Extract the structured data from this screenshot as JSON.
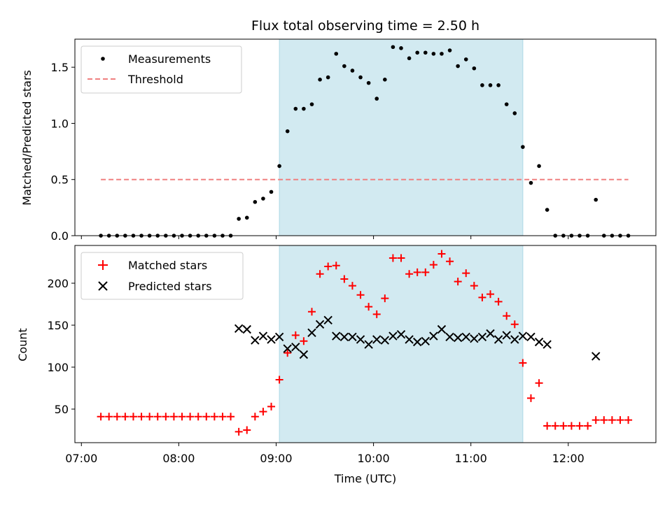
{
  "chart_data": [
    {
      "type": "scatter",
      "title": "Flux total observing time = 2.50 h",
      "ylabel": "Matched/Predicted stars",
      "xlabel": "",
      "xlim": [
        "06:56",
        "12:54"
      ],
      "ylim": [
        0,
        1.75
      ],
      "yticks": [
        "0.0",
        "0.5",
        "1.0",
        "1.5"
      ],
      "legend_position": "top-left",
      "grid": false,
      "shaded_span": {
        "start": "09:02",
        "end": "11:32",
        "color": "#add8e6"
      },
      "series": [
        {
          "name": "Measurements",
          "marker": "dot",
          "color": "#000000",
          "x": [
            "07:12",
            "07:17",
            "07:22",
            "07:27",
            "07:32",
            "07:37",
            "07:42",
            "07:47",
            "07:52",
            "07:57",
            "08:02",
            "08:07",
            "08:12",
            "08:17",
            "08:22",
            "08:27",
            "08:32",
            "08:37",
            "08:42",
            "08:47",
            "08:52",
            "08:57",
            "09:02",
            "09:07",
            "09:12",
            "09:17",
            "09:22",
            "09:27",
            "09:32",
            "09:37",
            "09:42",
            "09:47",
            "09:52",
            "09:57",
            "10:02",
            "10:07",
            "10:12",
            "10:17",
            "10:22",
            "10:27",
            "10:32",
            "10:37",
            "10:42",
            "10:47",
            "10:52",
            "10:57",
            "11:02",
            "11:07",
            "11:12",
            "11:17",
            "11:22",
            "11:27",
            "11:32",
            "11:37",
            "11:42",
            "11:47",
            "11:52",
            "11:57",
            "12:02",
            "12:07",
            "12:12",
            "12:17",
            "12:22",
            "12:27",
            "12:32",
            "12:37"
          ],
          "values": [
            0,
            0,
            0,
            0,
            0,
            0,
            0,
            0,
            0,
            0,
            0,
            0,
            0,
            0,
            0,
            0,
            0,
            0.15,
            0.16,
            0.3,
            0.33,
            0.39,
            0.62,
            0.93,
            1.13,
            1.13,
            1.17,
            1.39,
            1.41,
            1.62,
            1.51,
            1.47,
            1.41,
            1.36,
            1.22,
            1.39,
            1.68,
            1.67,
            1.58,
            1.63,
            1.63,
            1.62,
            1.62,
            1.65,
            1.51,
            1.57,
            1.49,
            1.34,
            1.34,
            1.34,
            1.17,
            1.09,
            0.79,
            0.47,
            0.62,
            0.23,
            0,
            0,
            0,
            0,
            0,
            0.32,
            0,
            0,
            0,
            0
          ]
        },
        {
          "name": "Threshold",
          "marker": "dashed-line",
          "color": "#f08080",
          "x": [
            "07:12",
            "12:37"
          ],
          "values": [
            0.5,
            0.5
          ]
        }
      ]
    },
    {
      "type": "scatter",
      "title": "",
      "ylabel": "Count",
      "xlabel": "Time (UTC)",
      "xlim": [
        "06:56",
        "12:54"
      ],
      "ylim": [
        10,
        245
      ],
      "yticks": [
        "50",
        "100",
        "150",
        "200"
      ],
      "xticks": [
        "07:00",
        "08:00",
        "09:00",
        "10:00",
        "11:00",
        "12:00"
      ],
      "legend_position": "top-left",
      "grid": false,
      "shaded_span": {
        "start": "09:02",
        "end": "11:32",
        "color": "#add8e6"
      },
      "series": [
        {
          "name": "Matched stars",
          "marker": "plus",
          "color": "#ff0000",
          "x": [
            "07:12",
            "07:17",
            "07:22",
            "07:27",
            "07:32",
            "07:37",
            "07:42",
            "07:47",
            "07:52",
            "07:57",
            "08:02",
            "08:07",
            "08:12",
            "08:17",
            "08:22",
            "08:27",
            "08:32",
            "08:37",
            "08:42",
            "08:47",
            "08:52",
            "08:57",
            "09:02",
            "09:07",
            "09:12",
            "09:17",
            "09:22",
            "09:27",
            "09:32",
            "09:37",
            "09:42",
            "09:47",
            "09:52",
            "09:57",
            "10:02",
            "10:07",
            "10:12",
            "10:17",
            "10:22",
            "10:27",
            "10:32",
            "10:37",
            "10:42",
            "10:47",
            "10:52",
            "10:57",
            "11:02",
            "11:07",
            "11:12",
            "11:17",
            "11:22",
            "11:27",
            "11:32",
            "11:37",
            "11:42",
            "11:47",
            "11:52",
            "11:57",
            "12:02",
            "12:07",
            "12:12",
            "12:17",
            "12:22",
            "12:27",
            "12:32",
            "12:37"
          ],
          "values": [
            41,
            41,
            41,
            41,
            41,
            41,
            41,
            41,
            41,
            41,
            41,
            41,
            41,
            41,
            41,
            41,
            41,
            23,
            25,
            41,
            47,
            53,
            85,
            117,
            138,
            131,
            166,
            211,
            220,
            221,
            205,
            197,
            186,
            172,
            163,
            182,
            230,
            230,
            211,
            213,
            213,
            222,
            235,
            226,
            202,
            212,
            197,
            183,
            187,
            178,
            161,
            151,
            105,
            63,
            81,
            30,
            30,
            30,
            30,
            30,
            30,
            37,
            37,
            37,
            37,
            37
          ]
        },
        {
          "name": "Predicted stars",
          "marker": "x",
          "color": "#000000",
          "x": [
            "08:37",
            "08:42",
            "08:47",
            "08:52",
            "08:57",
            "09:02",
            "09:07",
            "09:12",
            "09:17",
            "09:22",
            "09:27",
            "09:32",
            "09:37",
            "09:42",
            "09:47",
            "09:52",
            "09:57",
            "10:02",
            "10:07",
            "10:12",
            "10:17",
            "10:22",
            "10:27",
            "10:32",
            "10:37",
            "10:42",
            "10:47",
            "10:52",
            "10:57",
            "11:02",
            "11:07",
            "11:12",
            "11:17",
            "11:22",
            "11:27",
            "11:32",
            "11:37",
            "11:42",
            "11:47",
            "12:17"
          ],
          "values": [
            146,
            145,
            132,
            137,
            133,
            136,
            122,
            124,
            115,
            141,
            151,
            156,
            137,
            136,
            136,
            133,
            127,
            133,
            132,
            137,
            139,
            133,
            130,
            131,
            137,
            145,
            136,
            135,
            136,
            134,
            136,
            140,
            133,
            138,
            133,
            137,
            136,
            130,
            127,
            113
          ]
        }
      ]
    }
  ]
}
